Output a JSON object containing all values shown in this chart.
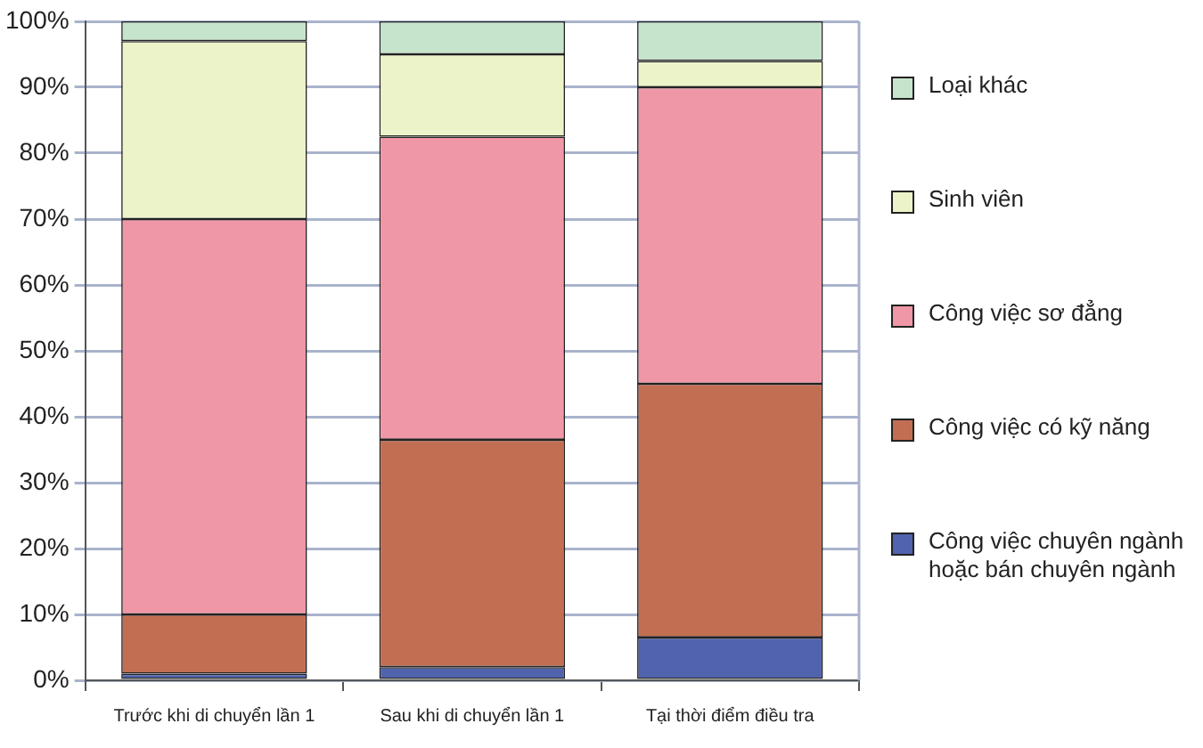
{
  "chart_data": {
    "type": "bar",
    "stacked": true,
    "categories": [
      "Trước khi di chuyển lần 1",
      "Sau khi di chuyển lần 1",
      "Tại thời điểm điều tra"
    ],
    "series": [
      {
        "name": "Công việc chuyên ngành hoặc bán chuyên ngành",
        "color": "#5163ad",
        "values": [
          1,
          2,
          6.5
        ]
      },
      {
        "name": "Công việc có kỹ năng",
        "color": "#c26e52",
        "values": [
          9,
          34.5,
          38.5
        ]
      },
      {
        "name": "Công việc sơ đẳng",
        "color": "#f097a7",
        "values": [
          60,
          46,
          45
        ]
      },
      {
        "name": "Sinh viên",
        "color": "#edf3c8",
        "values": [
          27,
          12.5,
          4
        ]
      },
      {
        "name": "Loại khác",
        "color": "#c6e4cc",
        "values": [
          3,
          5,
          6
        ]
      }
    ],
    "ylim": [
      0,
      100
    ],
    "yticks": [
      {
        "value": 0,
        "label": "0%"
      },
      {
        "value": 10,
        "label": "10%"
      },
      {
        "value": 20,
        "label": "20%"
      },
      {
        "value": 30,
        "label": "30%"
      },
      {
        "value": 40,
        "label": "40%"
      },
      {
        "value": 50,
        "label": "50%"
      },
      {
        "value": 60,
        "label": "60%"
      },
      {
        "value": 70,
        "label": "70%"
      },
      {
        "value": 80,
        "label": "80%"
      },
      {
        "value": 90,
        "label": "90%"
      },
      {
        "value": 100,
        "label": "100%"
      }
    ],
    "grid": "y",
    "legend": "right"
  }
}
